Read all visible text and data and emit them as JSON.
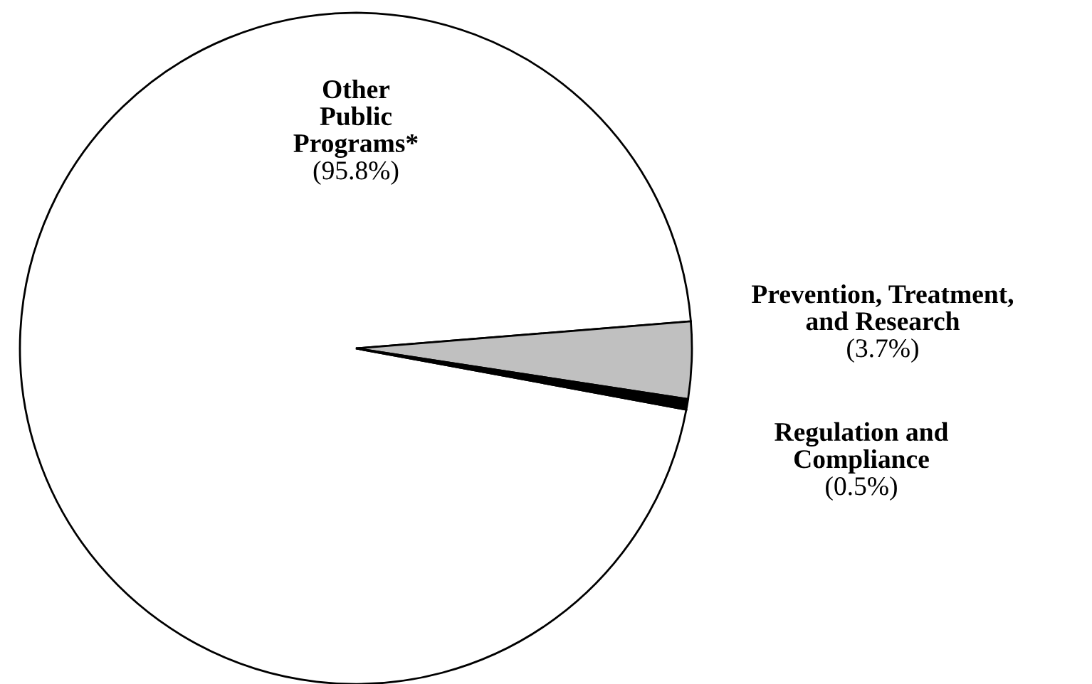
{
  "chart_data": {
    "type": "pie",
    "categories": [
      "Other\nPublic\nPrograms*",
      "Prevention, Treatment,\nand Research",
      "Regulation and\nCompliance"
    ],
    "values": [
      95.8,
      3.7,
      0.5
    ],
    "value_labels": [
      "(95.8%)",
      "(3.7%)",
      "(0.5%)"
    ],
    "colors": [
      "#ffffff",
      "#c0c0c0",
      "#000000"
    ]
  }
}
